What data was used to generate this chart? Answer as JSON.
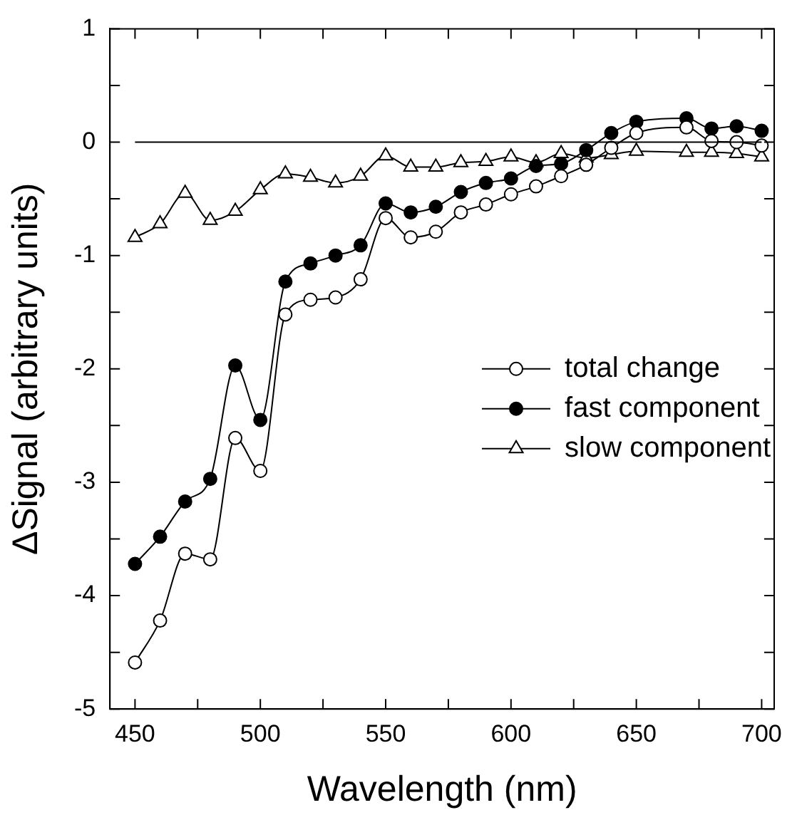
{
  "chart_data": {
    "type": "line",
    "xlabel": "Wavelength (nm)",
    "ylabel": "ΔSignal (arbitrary units)",
    "x": [
      450,
      460,
      470,
      480,
      490,
      500,
      510,
      520,
      530,
      540,
      550,
      560,
      570,
      580,
      590,
      600,
      610,
      620,
      630,
      640,
      650,
      670,
      680,
      690,
      700
    ],
    "series": [
      {
        "name": "total change",
        "color": "#000000",
        "marker": "circle-open",
        "values": [
          -4.59,
          -4.22,
          -3.63,
          -3.68,
          -2.61,
          -2.9,
          -1.52,
          -1.39,
          -1.37,
          -1.21,
          -0.67,
          -0.84,
          -0.79,
          -0.62,
          -0.55,
          -0.46,
          -0.39,
          -0.3,
          -0.2,
          -0.05,
          0.08,
          0.13,
          0.01,
          0,
          -0.03
        ]
      },
      {
        "name": "fast component",
        "color": "#000000",
        "marker": "circle",
        "values": [
          -3.72,
          -3.48,
          -3.17,
          -2.97,
          -1.97,
          -2.45,
          -1.23,
          -1.07,
          -1,
          -0.91,
          -0.54,
          -0.62,
          -0.57,
          -0.44,
          -0.36,
          -0.32,
          -0.21,
          -0.19,
          -0.07,
          0.08,
          0.18,
          0.21,
          0.12,
          0.14,
          0.1
        ]
      },
      {
        "name": "slow component",
        "color": "#000000",
        "marker": "triangle-open",
        "values": [
          -0.84,
          -0.72,
          -0.45,
          -0.69,
          -0.61,
          -0.42,
          -0.28,
          -0.31,
          -0.36,
          -0.3,
          -0.12,
          -0.22,
          -0.22,
          -0.18,
          -0.17,
          -0.13,
          -0.18,
          -0.1,
          -0.14,
          -0.11,
          -0.08,
          -0.09,
          -0.09,
          -0.1,
          -0.13
        ]
      }
    ],
    "xlim": [
      440,
      705
    ],
    "xticks": [
      450,
      {
        "value": 475,
        "label": null
      },
      500,
      {
        "value": 525,
        "label": null
      },
      550,
      {
        "value": 575,
        "label": null
      },
      600,
      {
        "value": 625,
        "label": null
      },
      650,
      {
        "value": 675,
        "label": null
      },
      700
    ],
    "ylim": [
      -5,
      1
    ],
    "yticks": [
      -5,
      {
        "value": -4.5,
        "label": null
      },
      -4,
      {
        "value": -3.5,
        "label": null
      },
      -3,
      {
        "value": -2.5,
        "label": null
      },
      -2,
      {
        "value": -1.5,
        "label": null
      },
      -1,
      {
        "value": -0.5,
        "label": null
      },
      0,
      {
        "value": 0.5,
        "label": null
      },
      1
    ],
    "ref_lines": [
      {
        "axis": "y",
        "value": 0,
        "color": "#000000"
      }
    ],
    "legend": "right"
  }
}
